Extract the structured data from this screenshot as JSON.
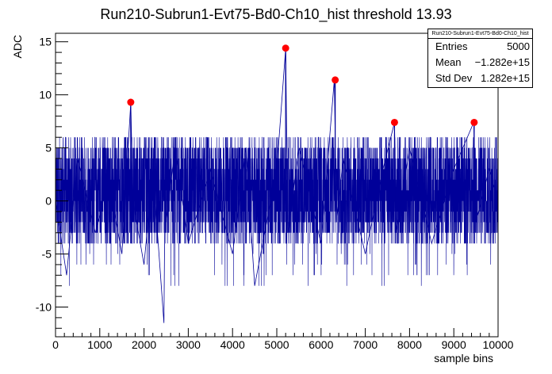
{
  "chart_data": {
    "type": "line",
    "title": "Run210-Subrun1-Evt75-Bd0-Ch10_hist threshold 13.93",
    "xlabel": "sample bins",
    "ylabel": "ADC",
    "xlim": [
      0,
      10000
    ],
    "ylim": [
      -12.8,
      15.8
    ],
    "x_ticks": [
      0,
      1000,
      2000,
      3000,
      4000,
      5000,
      6000,
      7000,
      8000,
      9000,
      10000
    ],
    "y_ticks": [
      -10,
      -5,
      0,
      5,
      10,
      15
    ],
    "grid": false,
    "series_color": "#000099",
    "marker_color": "#ff0000",
    "noise_band": [
      -4,
      6
    ],
    "series": [
      {
        "x": [
          0,
          250,
          500,
          900,
          1200,
          1500,
          1700,
          1750,
          2000,
          2200,
          2450,
          2480,
          2500,
          2700,
          3000,
          3500,
          4000,
          4300,
          4500,
          5000,
          5200,
          5250,
          5500,
          6000,
          6300,
          6350,
          6500,
          7000,
          7400,
          7660,
          7700,
          8000,
          8500,
          9000,
          9450,
          9500,
          9800,
          10000
        ],
        "y": [
          0,
          -7,
          4,
          -3,
          2,
          -5,
          9.3,
          0,
          -6,
          3,
          -11.5,
          4,
          -2,
          5,
          -4,
          3,
          -5,
          5,
          -8,
          3,
          14.4,
          -3,
          5,
          -4,
          11.4,
          -2,
          4,
          -5,
          3,
          7.4,
          -3,
          5,
          -4,
          3,
          7.4,
          -2,
          3,
          0
        ]
      }
    ],
    "peaks": [
      {
        "x": 1700,
        "y": 9.3
      },
      {
        "x": 5200,
        "y": 14.4
      },
      {
        "x": 6320,
        "y": 11.4
      },
      {
        "x": 7660,
        "y": 7.4
      },
      {
        "x": 9460,
        "y": 7.4
      }
    ]
  },
  "stats": {
    "title": "Run210-Subrun1-Evt75-Bd0-Ch10_hist",
    "rows": [
      {
        "label": "Entries",
        "value": "5000"
      },
      {
        "label": "Mean",
        "value": "−1.282e+15"
      },
      {
        "label": "Std Dev",
        "value": "1.282e+15"
      }
    ]
  }
}
